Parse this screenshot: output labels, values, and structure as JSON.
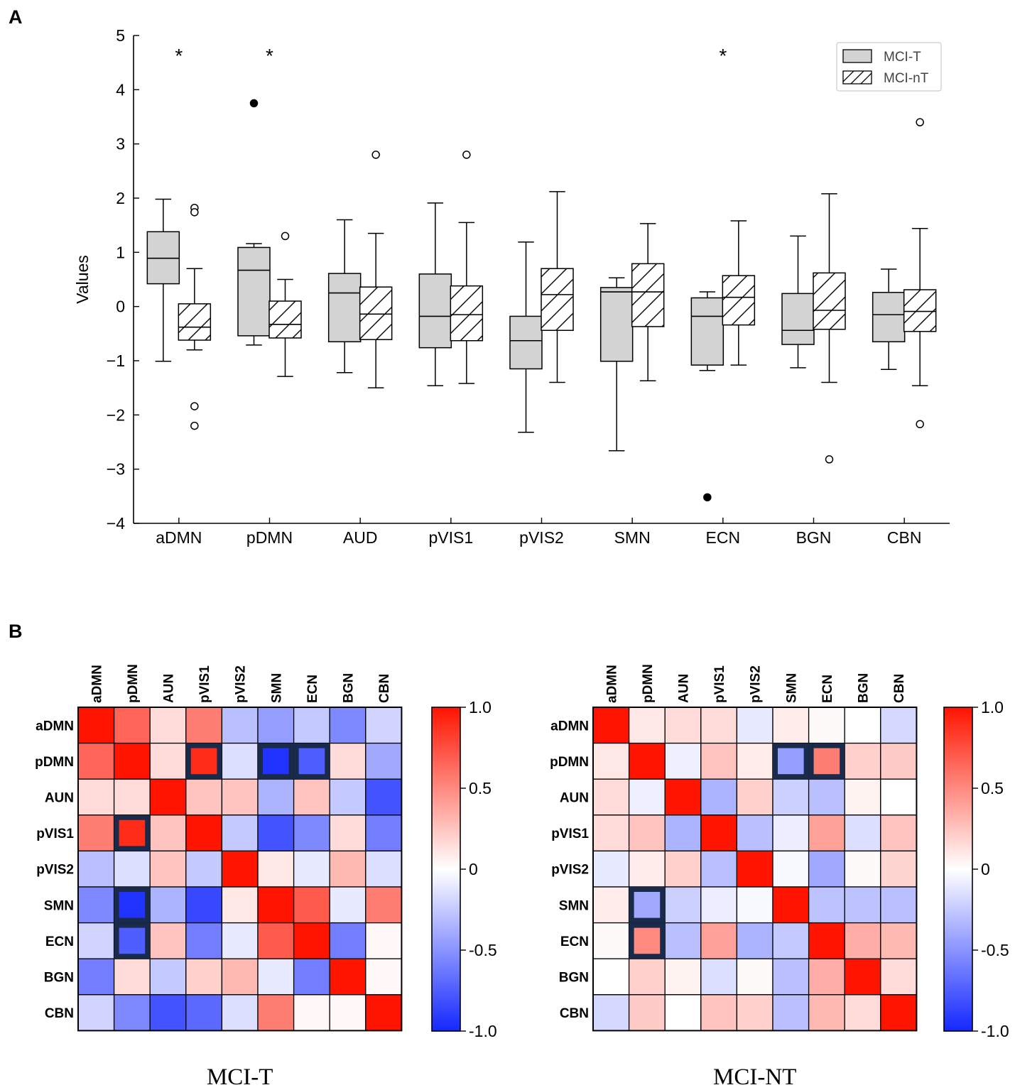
{
  "panels": {
    "a": "A",
    "b": "B"
  },
  "chart_data": [
    {
      "type": "box",
      "ylabel": "Values",
      "ylim": [
        -4,
        5
      ],
      "yticks": [
        -4,
        -3,
        -2,
        -1,
        0,
        1,
        2,
        3,
        4,
        5
      ],
      "ytick_labels": [
        "−4",
        "−3",
        "−2",
        "−1",
        "0",
        "1",
        "2",
        "3",
        "4",
        "5"
      ],
      "categories": [
        "aDMN",
        "pDMN",
        "AUD",
        "pVIS1",
        "pVIS2",
        "SMN",
        "ECN",
        "BGN",
        "CBN"
      ],
      "legend": {
        "position": "top-right",
        "entries": [
          "MCI-T",
          "MCI-nT"
        ]
      },
      "significance_marker": "*",
      "significant": [
        "aDMN",
        "pDMN",
        "ECN"
      ],
      "series": [
        {
          "name": "MCI-T",
          "fill": "#d3d3d3",
          "hatch": false,
          "boxes": [
            {
              "whislo": -1.01,
              "q1": 0.42,
              "med": 0.89,
              "q3": 1.38,
              "whishi": 1.98,
              "fliers": []
            },
            {
              "whislo": -0.71,
              "q1": -0.54,
              "med": 0.67,
              "q3": 1.09,
              "whishi": 1.16,
              "fliers": [
                3.75
              ]
            },
            {
              "whislo": -1.22,
              "q1": -0.65,
              "med": 0.25,
              "q3": 0.61,
              "whishi": 1.6,
              "fliers": []
            },
            {
              "whislo": -1.46,
              "q1": -0.76,
              "med": -0.18,
              "q3": 0.6,
              "whishi": 1.91,
              "fliers": []
            },
            {
              "whislo": -2.32,
              "q1": -1.15,
              "med": -0.63,
              "q3": -0.18,
              "whishi": 1.19,
              "fliers": []
            },
            {
              "whislo": -2.66,
              "q1": -1.01,
              "med": 0.27,
              "q3": 0.35,
              "whishi": 0.53,
              "fliers": []
            },
            {
              "whislo": -1.18,
              "q1": -1.08,
              "med": -0.18,
              "q3": 0.16,
              "whishi": 0.27,
              "fliers": [
                -3.52
              ]
            },
            {
              "whislo": -1.13,
              "q1": -0.7,
              "med": -0.44,
              "q3": 0.24,
              "whishi": 1.3,
              "fliers": []
            },
            {
              "whislo": -1.16,
              "q1": -0.65,
              "med": -0.15,
              "q3": 0.26,
              "whishi": 0.69,
              "fliers": []
            }
          ]
        },
        {
          "name": "MCI-nT",
          "fill": "#ffffff",
          "hatch": true,
          "boxes": [
            {
              "whislo": -0.8,
              "q1": -0.62,
              "med": -0.38,
              "q3": 0.05,
              "whishi": 0.7,
              "fliers": [
                1.82,
                1.74,
                -1.84,
                -2.2
              ]
            },
            {
              "whislo": -1.29,
              "q1": -0.58,
              "med": -0.33,
              "q3": 0.1,
              "whishi": 0.5,
              "fliers": [
                1.3
              ]
            },
            {
              "whislo": -1.5,
              "q1": -0.61,
              "med": -0.14,
              "q3": 0.36,
              "whishi": 1.35,
              "fliers": [
                2.8
              ]
            },
            {
              "whislo": -1.42,
              "q1": -0.63,
              "med": -0.15,
              "q3": 0.38,
              "whishi": 1.55,
              "fliers": [
                2.8
              ]
            },
            {
              "whislo": -1.4,
              "q1": -0.44,
              "med": 0.22,
              "q3": 0.7,
              "whishi": 2.12,
              "fliers": []
            },
            {
              "whislo": -1.37,
              "q1": -0.37,
              "med": 0.27,
              "q3": 0.79,
              "whishi": 1.53,
              "fliers": []
            },
            {
              "whislo": -1.08,
              "q1": -0.34,
              "med": 0.17,
              "q3": 0.57,
              "whishi": 1.58,
              "fliers": []
            },
            {
              "whislo": -1.4,
              "q1": -0.42,
              "med": -0.07,
              "q3": 0.62,
              "whishi": 2.08,
              "fliers": [
                -2.82
              ]
            },
            {
              "whislo": -1.46,
              "q1": -0.46,
              "med": -0.09,
              "q3": 0.31,
              "whishi": 1.44,
              "fliers": [
                3.4,
                -2.17
              ]
            }
          ]
        }
      ]
    },
    {
      "type": "heatmap",
      "title": "MCI-T",
      "labels": [
        "aDMN",
        "pDMN",
        "AUN",
        "pVIS1",
        "pVIS2",
        "SMN",
        "ECN",
        "BGN",
        "CBN"
      ],
      "colorbar": {
        "min": -1.0,
        "max": 1.0,
        "ticks": [
          1.0,
          0.5,
          0,
          -0.5,
          -1.0
        ],
        "tick_labels": [
          "1.0",
          "0.5",
          "0",
          "-0.5",
          "-1.0"
        ]
      },
      "matrix": [
        [
          1.0,
          0.65,
          0.15,
          0.55,
          -0.3,
          -0.45,
          -0.25,
          -0.55,
          -0.2
        ],
        [
          0.65,
          1.0,
          0.15,
          0.9,
          -0.15,
          -0.95,
          -0.75,
          0.15,
          -0.4
        ],
        [
          0.15,
          0.15,
          1.0,
          0.25,
          0.25,
          -0.35,
          0.25,
          -0.25,
          -0.8
        ],
        [
          0.55,
          0.9,
          0.25,
          1.0,
          -0.25,
          -0.8,
          -0.55,
          0.15,
          -0.6
        ],
        [
          -0.3,
          -0.15,
          0.25,
          -0.25,
          1.0,
          0.1,
          -0.1,
          0.3,
          -0.15
        ],
        [
          -0.55,
          -0.95,
          -0.35,
          -0.85,
          0.1,
          1.0,
          0.7,
          -0.1,
          0.55
        ],
        [
          -0.2,
          -0.75,
          0.25,
          -0.6,
          -0.1,
          0.7,
          1.0,
          -0.6,
          0.03
        ],
        [
          -0.6,
          0.15,
          -0.25,
          0.2,
          0.3,
          -0.1,
          -0.6,
          1.0,
          0.03
        ],
        [
          -0.2,
          -0.55,
          -0.8,
          -0.7,
          -0.15,
          0.55,
          0.03,
          0.03,
          1.0
        ]
      ],
      "highlighted_cells": [
        [
          1,
          3
        ],
        [
          1,
          5
        ],
        [
          1,
          6
        ],
        [
          3,
          1
        ],
        [
          5,
          1
        ],
        [
          6,
          1
        ]
      ]
    },
    {
      "type": "heatmap",
      "title": "MCI-NT",
      "labels": [
        "aDMN",
        "pDMN",
        "AUN",
        "pVIS1",
        "pVIS2",
        "SMN",
        "ECN",
        "BGN",
        "CBN"
      ],
      "colorbar": {
        "min": -1.0,
        "max": 1.0,
        "ticks": [
          1.0,
          0.5,
          0,
          -0.5,
          -1.0
        ],
        "tick_labels": [
          "1.0",
          "0.5",
          "0",
          "-0.5",
          "-1.0"
        ]
      },
      "matrix": [
        [
          1.0,
          0.1,
          0.15,
          0.15,
          -0.1,
          0.08,
          0.02,
          0.0,
          -0.18
        ],
        [
          0.1,
          1.0,
          -0.07,
          0.25,
          0.08,
          -0.45,
          0.55,
          0.2,
          0.22
        ],
        [
          0.15,
          -0.07,
          1.0,
          -0.35,
          0.2,
          -0.22,
          -0.3,
          0.05,
          0.0
        ],
        [
          0.15,
          0.25,
          -0.35,
          1.0,
          -0.3,
          -0.08,
          0.4,
          -0.15,
          0.25
        ],
        [
          -0.1,
          0.08,
          0.2,
          -0.3,
          1.0,
          -0.03,
          -0.4,
          0.02,
          0.18
        ],
        [
          0.08,
          -0.4,
          -0.22,
          -0.08,
          -0.03,
          1.0,
          -0.28,
          -0.28,
          -0.3
        ],
        [
          0.02,
          0.5,
          -0.3,
          0.4,
          -0.35,
          -0.25,
          1.0,
          0.35,
          0.3
        ],
        [
          0.0,
          0.2,
          0.05,
          -0.15,
          0.02,
          -0.3,
          0.35,
          1.0,
          0.15
        ],
        [
          -0.18,
          0.22,
          0.0,
          0.25,
          0.2,
          -0.3,
          0.3,
          0.15,
          1.0
        ]
      ],
      "highlighted_cells": [
        [
          1,
          5
        ],
        [
          1,
          6
        ],
        [
          5,
          1
        ],
        [
          6,
          1
        ]
      ]
    }
  ]
}
